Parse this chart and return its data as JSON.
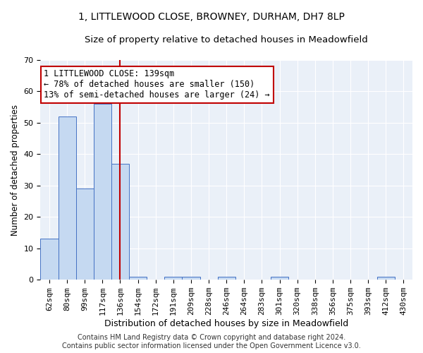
{
  "title1": "1, LITTLEWOOD CLOSE, BROWNEY, DURHAM, DH7 8LP",
  "title2": "Size of property relative to detached houses in Meadowfield",
  "xlabel": "Distribution of detached houses by size in Meadowfield",
  "ylabel": "Number of detached properties",
  "categories": [
    "62sqm",
    "80sqm",
    "99sqm",
    "117sqm",
    "136sqm",
    "154sqm",
    "172sqm",
    "191sqm",
    "209sqm",
    "228sqm",
    "246sqm",
    "264sqm",
    "283sqm",
    "301sqm",
    "320sqm",
    "338sqm",
    "356sqm",
    "375sqm",
    "393sqm",
    "412sqm",
    "430sqm"
  ],
  "values": [
    13,
    52,
    29,
    56,
    37,
    1,
    0,
    1,
    1,
    0,
    1,
    0,
    0,
    1,
    0,
    0,
    0,
    0,
    0,
    1,
    0
  ],
  "bar_color": "#c5d9f1",
  "bar_edge_color": "#4472c4",
  "highlight_line_index": 4,
  "highlight_line_color": "#c00000",
  "annotation_line1": "1 LITTLEWOOD CLOSE: 139sqm",
  "annotation_line2": "← 78% of detached houses are smaller (150)",
  "annotation_line3": "13% of semi-detached houses are larger (24) →",
  "annotation_box_color": "#ffffff",
  "annotation_box_edge_color": "#c00000",
  "ylim": [
    0,
    70
  ],
  "yticks": [
    0,
    10,
    20,
    30,
    40,
    50,
    60,
    70
  ],
  "footer1": "Contains HM Land Registry data © Crown copyright and database right 2024.",
  "footer2": "Contains public sector information licensed under the Open Government Licence v3.0.",
  "plot_bg_color": "#eaf0f8",
  "title1_fontsize": 10,
  "title2_fontsize": 9.5,
  "xlabel_fontsize": 9,
  "ylabel_fontsize": 8.5,
  "tick_fontsize": 8,
  "annotation_fontsize": 8.5,
  "footer_fontsize": 7
}
